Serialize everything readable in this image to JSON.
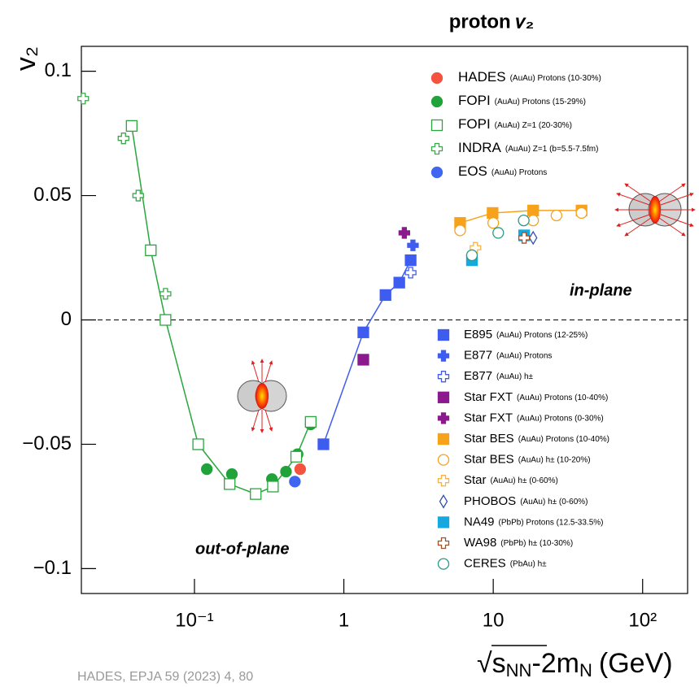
{
  "chart_data": {
    "type": "scatter",
    "title": "proton 𝑣₂",
    "y_label": "v₂",
    "x_label": {
      "root": "s",
      "root_sub": "NN",
      "rest": "-2m",
      "rest_sub": "N",
      "unit": "(GeV)"
    },
    "log_x": true,
    "xlim": [
      0.0175,
      200
    ],
    "ylim": [
      -0.11,
      0.11
    ],
    "xticks": [
      {
        "value": 0.1,
        "label": "10⁻¹"
      },
      1,
      10,
      {
        "value": 100,
        "label": "10²"
      }
    ],
    "yticks": [
      0.1,
      0.05,
      0,
      {
        "value": -0.05,
        "label": "−0.05"
      },
      {
        "value": -0.1,
        "label": "−0.1"
      }
    ],
    "reference_line": 0,
    "annotations": [
      "in-plane",
      "out-of-plane"
    ],
    "source": "HADES, EPJA 59 (2023) 4, 80",
    "series": [
      {
        "name": "HADES",
        "note": "(AuAu) Protons (10-30%)",
        "marker": "circle",
        "color": "#f4533f",
        "x": [
          0.51
        ],
        "values": [
          -0.06
        ]
      },
      {
        "name": "FOPI",
        "note": "(AuAu) Protons (15-29%)",
        "marker": "circle",
        "color": "#1fa33a",
        "x": [
          0.121,
          0.178,
          0.33,
          0.41,
          0.49,
          0.6
        ],
        "values": [
          -0.06,
          -0.062,
          -0.064,
          -0.061,
          -0.054,
          -0.042
        ]
      },
      {
        "name": "FOPI",
        "note": "(AuAu) Z=1 (20-30%)",
        "marker": "open-square",
        "color": "#2aa63e",
        "line": true,
        "x": [
          0.038,
          0.051,
          0.064,
          0.106,
          0.172,
          0.257,
          0.335,
          0.48,
          0.6
        ],
        "values": [
          0.078,
          0.028,
          0,
          -0.05,
          -0.066,
          -0.07,
          -0.067,
          -0.055,
          -0.041
        ]
      },
      {
        "name": "INDRA",
        "note": "(AuAu) Z=1 (b=5.5-7.5fm)",
        "marker": "open-cross",
        "color": "#3aa84a",
        "x": [
          0.018,
          0.0335,
          0.042,
          0.064
        ],
        "values": [
          0.089,
          0.073,
          0.05,
          0.0105
        ]
      },
      {
        "name": "EOS",
        "note": "(AuAu) Protons",
        "marker": "circle",
        "color": "#3f66f0",
        "x": [
          0.47
        ],
        "values": [
          -0.065
        ]
      },
      {
        "name": "E895",
        "note": "(AuAu) Protons (12-25%)",
        "marker": "square",
        "color": "#3f5cf0",
        "line": true,
        "x": [
          0.73,
          1.35,
          1.9,
          2.35,
          2.8
        ],
        "values": [
          -0.05,
          -0.005,
          0.01,
          0.015,
          0.024
        ]
      },
      {
        "name": "E877",
        "note": "(AuAu) Protons",
        "marker": "cross",
        "color": "#3f5cf0",
        "x": [
          2.9
        ],
        "values": [
          0.03
        ]
      },
      {
        "name": "E877",
        "note": "(AuAu) h±",
        "marker": "open-cross",
        "color": "#3f5cf0",
        "x": [
          2.8
        ],
        "values": [
          0.019
        ]
      },
      {
        "name": "Star FXT",
        "note": "(AuAu) Protons (10-40%)",
        "marker": "square",
        "color": "#8b1a8e",
        "x": [
          1.35
        ],
        "values": [
          -0.016
        ]
      },
      {
        "name": "Star FXT",
        "note": "(AuAu) Protons (0-30%)",
        "marker": "cross",
        "color": "#8b1a8e",
        "x": [
          2.54
        ],
        "values": [
          0.035
        ]
      },
      {
        "name": "Star BES",
        "note": "(AuAu) Protons (10-40%)",
        "marker": "square",
        "color": "#f7a21b",
        "line": true,
        "x": [
          6.0,
          9.9,
          18.5,
          39
        ],
        "values": [
          0.039,
          0.043,
          0.044,
          0.044
        ]
      },
      {
        "name": "Star BES",
        "note": "(AuAu) h± (10-20%)",
        "marker": "open-circle",
        "color": "#f7a21b",
        "x": [
          6.0,
          10,
          18.5,
          26.5,
          39
        ],
        "values": [
          0.036,
          0.039,
          0.04,
          0.042,
          0.043
        ]
      },
      {
        "name": "Star",
        "note": "(AuAu) h± (0-60%)",
        "marker": "open-cross",
        "color": "#f5b445",
        "x": [
          7.6
        ],
        "values": [
          0.029
        ]
      },
      {
        "name": "PHOBOS",
        "note": "(AuAu) h± (0-60%)",
        "marker": "diamond",
        "color": "#3050b0",
        "x": [
          18.5
        ],
        "values": [
          0.033
        ]
      },
      {
        "name": "NA49",
        "note": "(PbPb) Protons (12.5-33.5%)",
        "marker": "square",
        "color": "#17a8e0",
        "x": [
          7.2,
          16.1
        ],
        "values": [
          0.024,
          0.034
        ]
      },
      {
        "name": "WA98",
        "note": "(PbPb) h± (10-30%)",
        "marker": "open-cross",
        "color": "#a0522d",
        "x": [
          16.1
        ],
        "values": [
          0.033
        ]
      },
      {
        "name": "CERES",
        "note": "(PbAu) h±",
        "marker": "open-circle",
        "color": "#2a9a8a",
        "x": [
          7.2,
          10.8,
          16
        ],
        "values": [
          0.026,
          0.035,
          0.04
        ]
      }
    ]
  }
}
